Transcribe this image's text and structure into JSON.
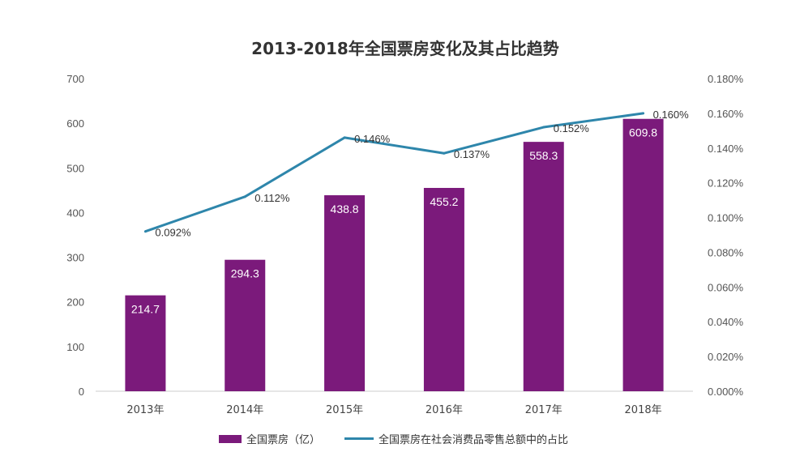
{
  "chart_data": {
    "type": "bar-line-combo",
    "title": "2013-2018年全国票房变化及其占比趋势",
    "categories": [
      "2013年",
      "2014年",
      "2015年",
      "2016年",
      "2017年",
      "2018年"
    ],
    "series": [
      {
        "name": "全国票房（亿）",
        "type": "bar",
        "axis": "left",
        "color": "#7b1a7b",
        "values": [
          214.7,
          294.3,
          438.8,
          455.2,
          558.3,
          609.8
        ],
        "labels": [
          "214.7",
          "294.3",
          "438.8",
          "455.2",
          "558.3",
          "609.8"
        ]
      },
      {
        "name": "全国票房在社会消费品零售总额中的占比",
        "type": "line",
        "axis": "right",
        "color": "#2e86ab",
        "values": [
          0.092,
          0.112,
          0.146,
          0.137,
          0.152,
          0.16
        ],
        "labels": [
          "0.092%",
          "0.112%",
          "0.146%",
          "0.137%",
          "0.152%",
          "0.160%"
        ]
      }
    ],
    "y_left": {
      "ylim": [
        0,
        700
      ],
      "ticks": [
        "0",
        "100",
        "200",
        "300",
        "400",
        "500",
        "600",
        "700"
      ]
    },
    "y_right": {
      "ylim": [
        0,
        0.18
      ],
      "ticks": [
        "0.000%",
        "0.020%",
        "0.040%",
        "0.060%",
        "0.080%",
        "0.100%",
        "0.120%",
        "0.140%",
        "0.160%",
        "0.180%"
      ]
    },
    "grid": false,
    "legend_position": "bottom"
  }
}
